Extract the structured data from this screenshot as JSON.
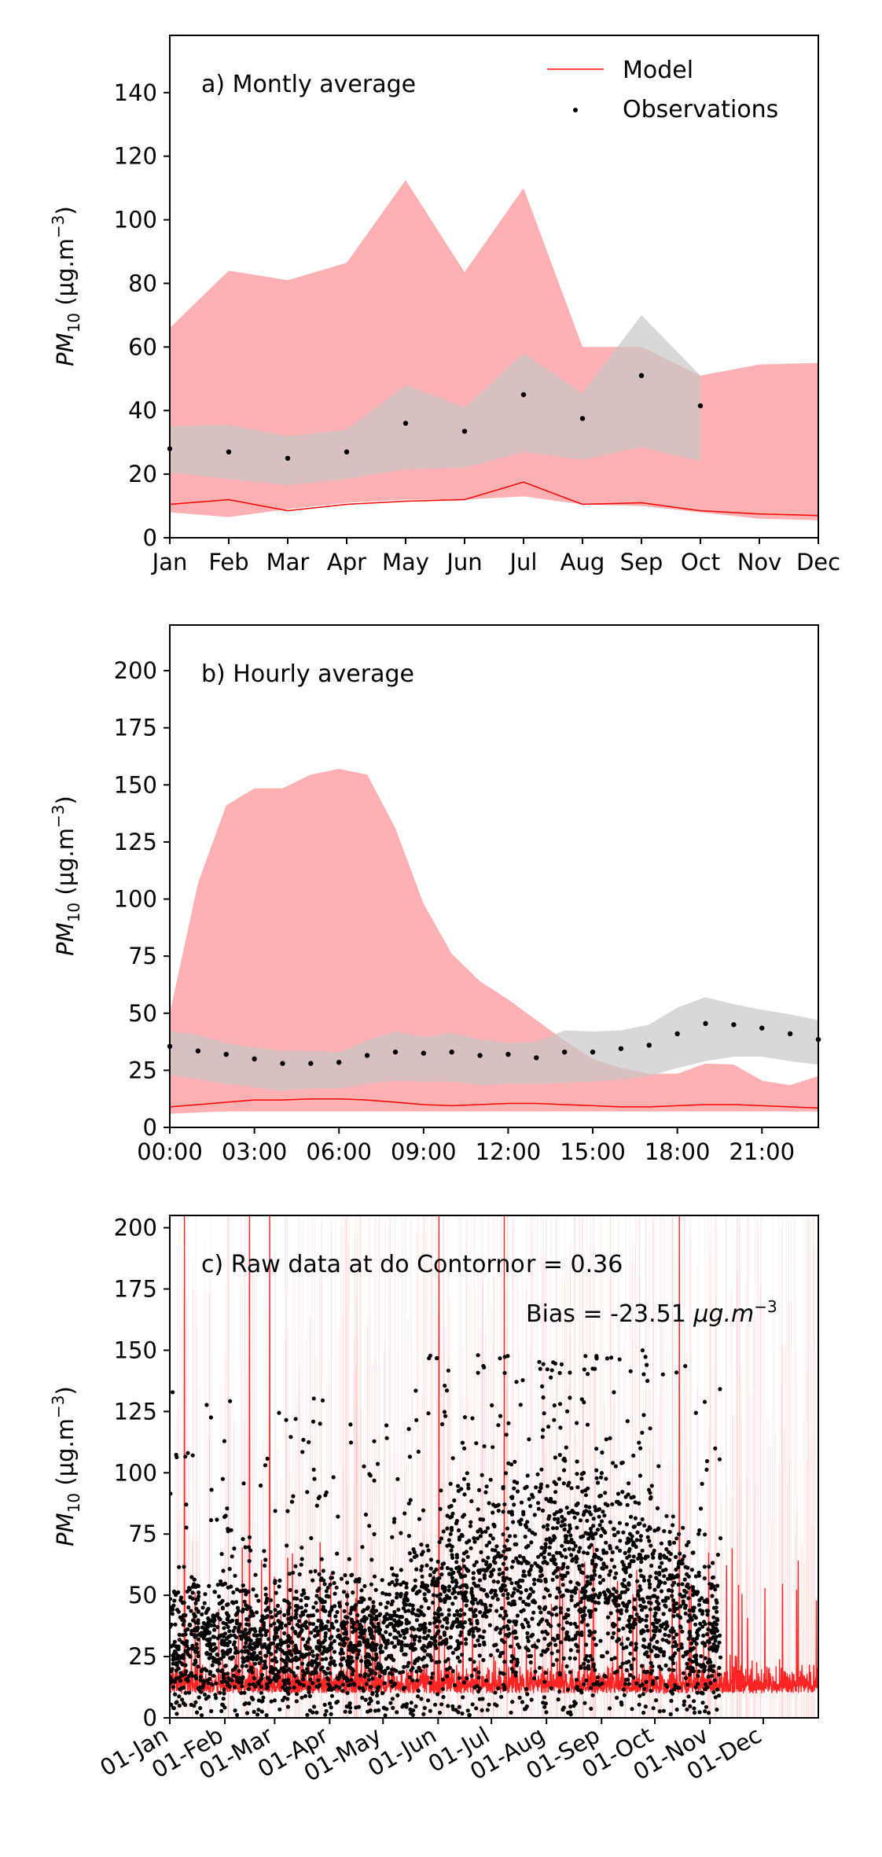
{
  "colors": {
    "model": "#ff0000",
    "model_band": "#ffb0b3",
    "obs": "#000000",
    "obs_band": "#c8c8c8"
  },
  "chart_data": [
    {
      "id": "monthly",
      "type": "line",
      "annotation": "a) Montly average",
      "ylabel": "PM10 (μg.m−3)",
      "ylabel_base": "PM",
      "ylabel_sub": "10",
      "ylabel_unit": " (μg.m",
      "ylabel_sup": "−3",
      "ylabel_close": ")",
      "ylim": [
        0,
        158
      ],
      "yticks": [
        0,
        20,
        40,
        60,
        80,
        100,
        120,
        140
      ],
      "xticks": [
        "Jan",
        "Feb",
        "Mar",
        "Apr",
        "May",
        "Jun",
        "Jul",
        "Aug",
        "Sep",
        "Oct",
        "Nov",
        "Dec"
      ],
      "legend": {
        "placement": "top-right",
        "model_label": "Model",
        "obs_label": "Observations"
      },
      "grid": false,
      "series": [
        {
          "name": "Model",
          "kind": "line",
          "values": [
            10.5,
            12,
            8.5,
            10.5,
            11.5,
            12,
            17.5,
            10.5,
            11,
            8.5,
            7.5,
            7
          ]
        },
        {
          "name": "Observations",
          "kind": "points",
          "values": [
            28,
            27,
            25,
            27,
            36,
            33.5,
            45,
            37.5,
            51,
            41.5,
            null,
            null
          ]
        }
      ],
      "bands": [
        {
          "kind": "model",
          "lower": [
            8,
            6.5,
            9,
            11,
            12,
            12,
            13,
            10.5,
            10,
            8,
            6,
            5.5
          ],
          "upper": [
            66,
            84,
            81,
            86.5,
            112.5,
            83.5,
            110,
            60,
            60,
            51,
            54.5,
            55
          ]
        },
        {
          "kind": "obs",
          "lower": [
            20.5,
            18.5,
            16.5,
            18.5,
            21.5,
            22,
            27,
            24.5,
            28.5,
            24,
            null,
            null
          ],
          "upper": [
            35,
            35.5,
            32,
            34,
            48,
            41,
            58,
            45.5,
            70,
            51,
            null,
            null
          ]
        }
      ]
    },
    {
      "id": "hourly",
      "type": "line",
      "annotation": "b) Hourly average",
      "ylabel_base": "PM",
      "ylabel_sub": "10",
      "ylabel_unit": " (μg.m",
      "ylabel_sup": "−3",
      "ylabel_close": ")",
      "ylim": [
        0,
        220
      ],
      "yticks": [
        0,
        25,
        50,
        75,
        100,
        125,
        150,
        175,
        200
      ],
      "xticks": [
        "00:00",
        "03:00",
        "06:00",
        "09:00",
        "12:00",
        "15:00",
        "18:00",
        "21:00"
      ],
      "xtick_hours": [
        0,
        3,
        6,
        9,
        12,
        15,
        18,
        21
      ],
      "grid": false,
      "series": [
        {
          "name": "Model",
          "kind": "line",
          "values": [
            9,
            10,
            11,
            12,
            12,
            12.5,
            12.5,
            12,
            11,
            10,
            9.5,
            10,
            10.5,
            10.5,
            10,
            9.5,
            9,
            9,
            9.5,
            10,
            10,
            9.5,
            9,
            8.5
          ]
        },
        {
          "name": "Observations",
          "kind": "points",
          "values": [
            35.5,
            33.5,
            32,
            30,
            28,
            28,
            28.5,
            31.5,
            33,
            32.5,
            33,
            31.5,
            32,
            30.5,
            33,
            33,
            34.5,
            36,
            41,
            45.5,
            45,
            43.5,
            41,
            38.5
          ]
        }
      ],
      "bands": [
        {
          "kind": "model",
          "lower": [
            6,
            6.5,
            7,
            7,
            7,
            7,
            7,
            7,
            7,
            7,
            7,
            7,
            7,
            7,
            7,
            7,
            7,
            7,
            7,
            7,
            7,
            7,
            7,
            7
          ],
          "upper": [
            50,
            107,
            141,
            148.5,
            148.5,
            154.5,
            157,
            154.5,
            131,
            98,
            76,
            64,
            56,
            47,
            38,
            30,
            26,
            23.5,
            23.5,
            28,
            27.5,
            20.5,
            18.5,
            22.5
          ]
        },
        {
          "kind": "obs",
          "lower": [
            23,
            21,
            19,
            17.5,
            16,
            17,
            17,
            19,
            20.5,
            20,
            20,
            18.5,
            19,
            19,
            19.5,
            20,
            21,
            22.5,
            26,
            29,
            31,
            31,
            29,
            27.5
          ]
        },
        {
          "kind": "obs",
          "upper": [
            42,
            40.5,
            37,
            35,
            33.5,
            33.5,
            33,
            38,
            42,
            39.5,
            41.5,
            38.5,
            37,
            37.5,
            42.5,
            42,
            42.5,
            45,
            52.5,
            57,
            54,
            51.5,
            49.5,
            47
          ]
        }
      ]
    },
    {
      "id": "raw",
      "type": "scatter",
      "annotation": "c) Raw data at  do Contorno",
      "r_label": "r = 0.36",
      "bias_label": "Bias = -23.51 ",
      "bias_unit": "μg.m",
      "bias_sup": "−3",
      "ylabel_base": "PM",
      "ylabel_sub": "10",
      "ylabel_unit": " (μg.m",
      "ylabel_sup": "−3",
      "ylabel_close": ")",
      "ylim": [
        0,
        205
      ],
      "yticks": [
        0,
        25,
        50,
        75,
        100,
        125,
        150,
        175,
        200
      ],
      "xticks": [
        "01-Jan",
        "01-Feb",
        "01-Mar",
        "01-Apr",
        "01-May",
        "01-Jun",
        "01-Jul",
        "01-Aug",
        "01-Sep",
        "01-Oct",
        "01-Nov",
        "01-Dec"
      ],
      "xtick_days": [
        0,
        31,
        59,
        90,
        120,
        151,
        181,
        212,
        243,
        273,
        304,
        334
      ],
      "xlim_days": [
        0,
        365
      ],
      "obs_end_day": 310,
      "grid": false,
      "series": [
        {
          "name": "Model",
          "kind": "line"
        },
        {
          "name": "Observations",
          "kind": "points"
        }
      ]
    }
  ]
}
